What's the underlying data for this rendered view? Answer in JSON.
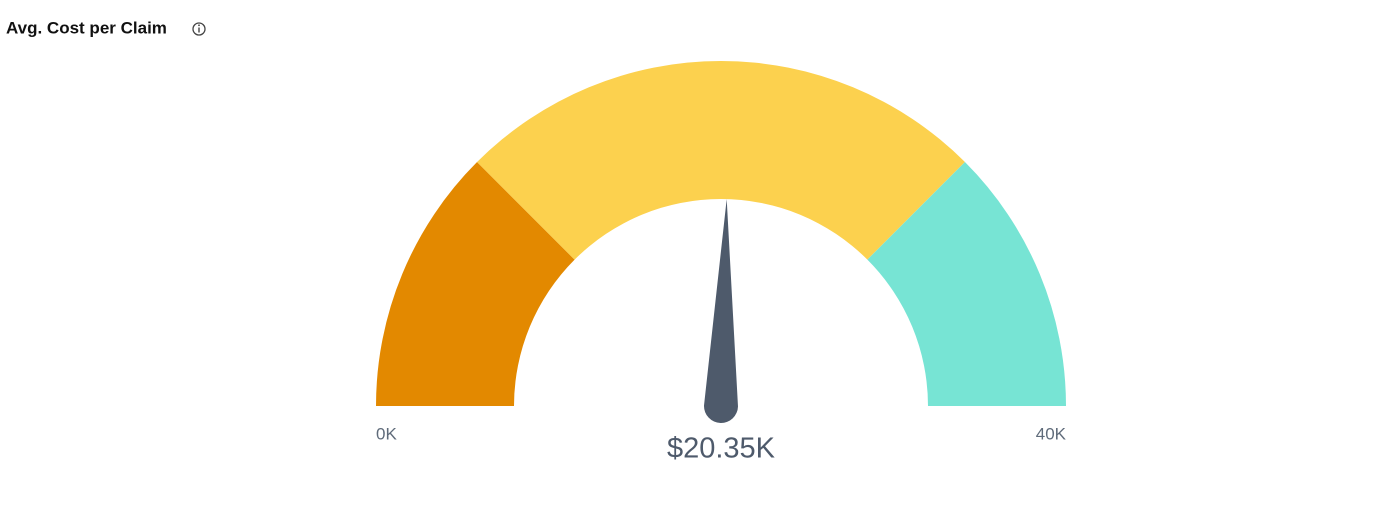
{
  "chart_data": {
    "type": "gauge",
    "title": "Avg. Cost per Claim",
    "lim": [
      0,
      40000
    ],
    "value": 20350,
    "value_label": "$20.35K",
    "needle_color": "#4e5a6b",
    "bands": [
      {
        "from": 0,
        "to": 10000,
        "color": "#e38900"
      },
      {
        "from": 10000,
        "to": 30000,
        "color": "#fcd14e"
      },
      {
        "from": 30000,
        "to": 40000,
        "color": "#77e4d4"
      }
    ],
    "ticks": [
      {
        "value": 0,
        "label": "0K"
      },
      {
        "value": 40000,
        "label": "40K"
      }
    ]
  }
}
